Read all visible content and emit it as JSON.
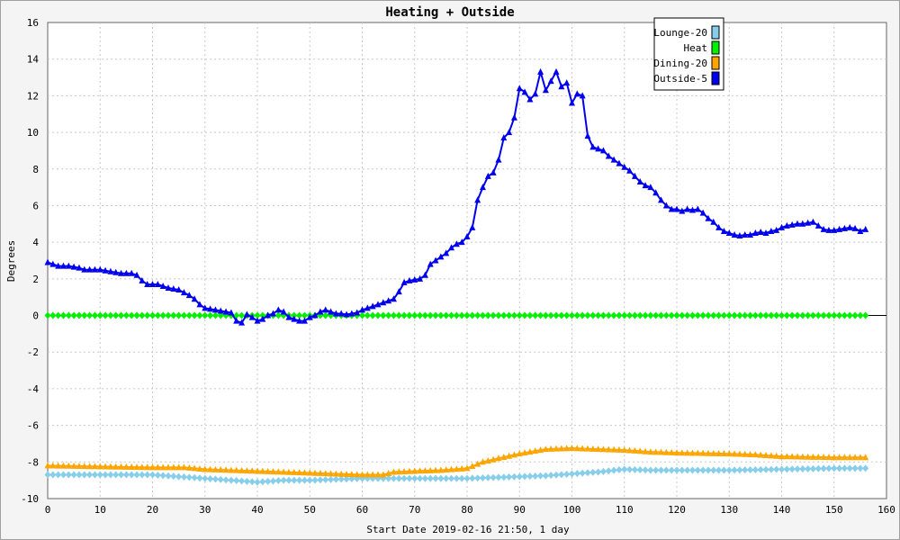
{
  "chart_data": {
    "type": "line",
    "title": "Heating + Outside",
    "xlabel": "Start Date 2019-02-16 21:50, 1 day",
    "ylabel": "Degrees",
    "xlim": [
      0,
      160
    ],
    "ylim": [
      -10,
      16
    ],
    "x_ticks": [
      0,
      10,
      20,
      30,
      40,
      50,
      60,
      70,
      80,
      90,
      100,
      110,
      120,
      130,
      140,
      150,
      160
    ],
    "y_ticks": [
      -10,
      -8,
      -6,
      -4,
      -2,
      0,
      2,
      4,
      6,
      8,
      10,
      12,
      14,
      16
    ],
    "grid": true,
    "legend_position": "top-right",
    "series": [
      {
        "name": "Lounge-20",
        "color": "#87ceeb",
        "marker": "diamond",
        "points": [
          [
            0,
            -8.7
          ],
          [
            10,
            -8.7
          ],
          [
            20,
            -8.7
          ],
          [
            25,
            -8.8
          ],
          [
            30,
            -8.9
          ],
          [
            35,
            -9.0
          ],
          [
            40,
            -9.1
          ],
          [
            45,
            -9.0
          ],
          [
            50,
            -9.0
          ],
          [
            60,
            -8.9
          ],
          [
            65,
            -8.9
          ],
          [
            70,
            -8.9
          ],
          [
            80,
            -8.9
          ],
          [
            85,
            -8.85
          ],
          [
            90,
            -8.8
          ],
          [
            95,
            -8.75
          ],
          [
            100,
            -8.65
          ],
          [
            105,
            -8.55
          ],
          [
            110,
            -8.4
          ],
          [
            115,
            -8.45
          ],
          [
            120,
            -8.45
          ],
          [
            130,
            -8.45
          ],
          [
            140,
            -8.4
          ],
          [
            150,
            -8.35
          ],
          [
            156,
            -8.35
          ]
        ]
      },
      {
        "name": "Heat",
        "color": "#00ee00",
        "marker": "diamond",
        "points": [
          [
            0,
            0
          ],
          [
            156,
            0
          ]
        ]
      },
      {
        "name": "Dining-20",
        "color": "#ffa500",
        "marker": "triangle",
        "points": [
          [
            0,
            -8.2
          ],
          [
            10,
            -8.25
          ],
          [
            20,
            -8.3
          ],
          [
            26,
            -8.3
          ],
          [
            30,
            -8.4
          ],
          [
            35,
            -8.45
          ],
          [
            40,
            -8.5
          ],
          [
            45,
            -8.55
          ],
          [
            50,
            -8.6
          ],
          [
            55,
            -8.65
          ],
          [
            60,
            -8.7
          ],
          [
            64,
            -8.7
          ],
          [
            66,
            -8.55
          ],
          [
            70,
            -8.5
          ],
          [
            75,
            -8.45
          ],
          [
            80,
            -8.35
          ],
          [
            83,
            -8.0
          ],
          [
            86,
            -7.8
          ],
          [
            90,
            -7.55
          ],
          [
            95,
            -7.3
          ],
          [
            100,
            -7.25
          ],
          [
            105,
            -7.3
          ],
          [
            110,
            -7.35
          ],
          [
            115,
            -7.45
          ],
          [
            120,
            -7.5
          ],
          [
            130,
            -7.55
          ],
          [
            135,
            -7.6
          ],
          [
            140,
            -7.7
          ],
          [
            150,
            -7.75
          ],
          [
            156,
            -7.75
          ]
        ]
      },
      {
        "name": "Outside-5",
        "color": "#0000ee",
        "marker": "triangle",
        "points": [
          [
            0,
            2.9
          ],
          [
            1,
            2.8
          ],
          [
            2,
            2.7
          ],
          [
            4,
            2.7
          ],
          [
            6,
            2.6
          ],
          [
            7,
            2.5
          ],
          [
            10,
            2.5
          ],
          [
            12,
            2.4
          ],
          [
            14,
            2.3
          ],
          [
            16,
            2.3
          ],
          [
            17,
            2.2
          ],
          [
            18,
            1.9
          ],
          [
            19,
            1.7
          ],
          [
            21,
            1.7
          ],
          [
            23,
            1.5
          ],
          [
            25,
            1.4
          ],
          [
            27,
            1.1
          ],
          [
            28,
            0.9
          ],
          [
            29,
            0.6
          ],
          [
            30,
            0.4
          ],
          [
            32,
            0.3
          ],
          [
            34,
            0.2
          ],
          [
            35,
            0.15
          ],
          [
            36,
            -0.3
          ],
          [
            37,
            -0.4
          ],
          [
            38,
            0.05
          ],
          [
            39,
            -0.1
          ],
          [
            40,
            -0.3
          ],
          [
            41,
            -0.2
          ],
          [
            42,
            0.0
          ],
          [
            43,
            0.1
          ],
          [
            44,
            0.3
          ],
          [
            45,
            0.2
          ],
          [
            46,
            -0.1
          ],
          [
            47,
            -0.2
          ],
          [
            48,
            -0.3
          ],
          [
            49,
            -0.3
          ],
          [
            50,
            -0.1
          ],
          [
            51,
            0.0
          ],
          [
            52,
            0.2
          ],
          [
            53,
            0.3
          ],
          [
            54,
            0.2
          ],
          [
            55,
            0.1
          ],
          [
            56,
            0.1
          ],
          [
            57,
            0.05
          ],
          [
            58,
            0.1
          ],
          [
            59,
            0.15
          ],
          [
            60,
            0.3
          ],
          [
            61,
            0.4
          ],
          [
            62,
            0.5
          ],
          [
            63,
            0.6
          ],
          [
            64,
            0.7
          ],
          [
            65,
            0.8
          ],
          [
            66,
            0.9
          ],
          [
            67,
            1.3
          ],
          [
            68,
            1.8
          ],
          [
            69,
            1.9
          ],
          [
            70,
            1.95
          ],
          [
            71,
            2.0
          ],
          [
            72,
            2.2
          ],
          [
            73,
            2.8
          ],
          [
            74,
            3.0
          ],
          [
            75,
            3.2
          ],
          [
            76,
            3.4
          ],
          [
            77,
            3.7
          ],
          [
            78,
            3.9
          ],
          [
            79,
            4.0
          ],
          [
            80,
            4.3
          ],
          [
            81,
            4.8
          ],
          [
            82,
            6.3
          ],
          [
            83,
            7.0
          ],
          [
            84,
            7.6
          ],
          [
            85,
            7.8
          ],
          [
            86,
            8.5
          ],
          [
            87,
            9.7
          ],
          [
            88,
            10.0
          ],
          [
            89,
            10.8
          ],
          [
            90,
            12.4
          ],
          [
            91,
            12.2
          ],
          [
            92,
            11.8
          ],
          [
            93,
            12.1
          ],
          [
            94,
            13.3
          ],
          [
            95,
            12.3
          ],
          [
            96,
            12.8
          ],
          [
            97,
            13.3
          ],
          [
            98,
            12.5
          ],
          [
            99,
            12.7
          ],
          [
            100,
            11.6
          ],
          [
            101,
            12.1
          ],
          [
            102,
            12.0
          ],
          [
            103,
            9.8
          ],
          [
            104,
            9.2
          ],
          [
            105,
            9.1
          ],
          [
            106,
            9.0
          ],
          [
            107,
            8.7
          ],
          [
            108,
            8.5
          ],
          [
            109,
            8.3
          ],
          [
            110,
            8.1
          ],
          [
            111,
            7.9
          ],
          [
            112,
            7.6
          ],
          [
            113,
            7.3
          ],
          [
            114,
            7.1
          ],
          [
            115,
            7.0
          ],
          [
            116,
            6.7
          ],
          [
            117,
            6.3
          ],
          [
            118,
            6.0
          ],
          [
            119,
            5.8
          ],
          [
            120,
            5.8
          ],
          [
            121,
            5.7
          ],
          [
            122,
            5.8
          ],
          [
            123,
            5.75
          ],
          [
            124,
            5.8
          ],
          [
            125,
            5.6
          ],
          [
            126,
            5.3
          ],
          [
            127,
            5.1
          ],
          [
            128,
            4.8
          ],
          [
            129,
            4.6
          ],
          [
            130,
            4.5
          ],
          [
            131,
            4.4
          ],
          [
            132,
            4.35
          ],
          [
            133,
            4.4
          ],
          [
            134,
            4.4
          ],
          [
            135,
            4.5
          ],
          [
            136,
            4.55
          ],
          [
            137,
            4.5
          ],
          [
            138,
            4.6
          ],
          [
            139,
            4.65
          ],
          [
            140,
            4.8
          ],
          [
            141,
            4.9
          ],
          [
            142,
            4.95
          ],
          [
            143,
            5.0
          ],
          [
            144,
            5.0
          ],
          [
            145,
            5.05
          ],
          [
            146,
            5.1
          ],
          [
            147,
            4.9
          ],
          [
            148,
            4.7
          ],
          [
            149,
            4.65
          ],
          [
            150,
            4.65
          ],
          [
            151,
            4.7
          ],
          [
            152,
            4.75
          ],
          [
            153,
            4.8
          ],
          [
            154,
            4.75
          ],
          [
            155,
            4.6
          ],
          [
            156,
            4.7
          ]
        ]
      }
    ]
  }
}
